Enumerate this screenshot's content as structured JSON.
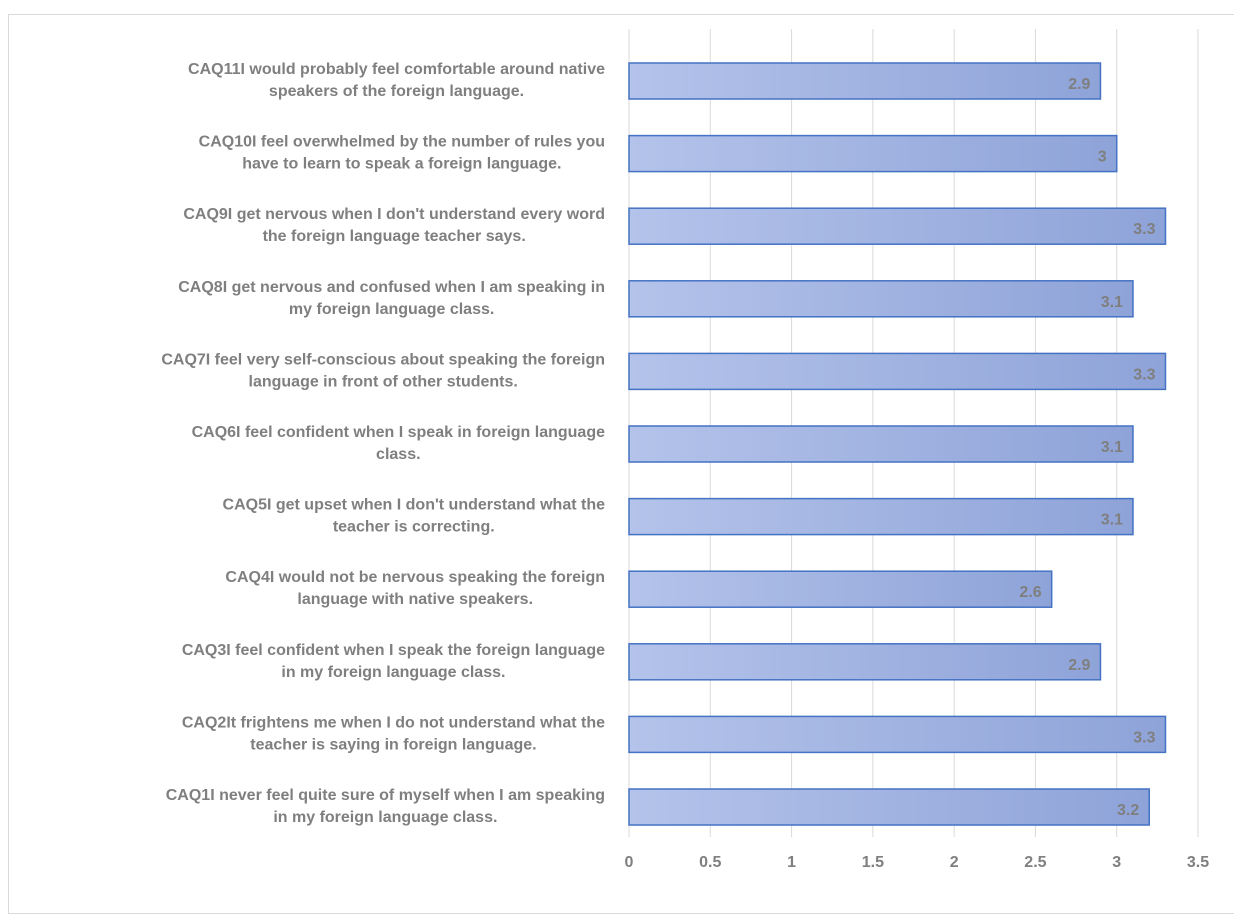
{
  "chart_data": {
    "type": "bar",
    "orientation": "horizontal",
    "categories": [
      "CAQ11I would probably feel comfortable around native speakers of the foreign language.",
      "CAQ10I feel overwhelmed by the number of rules you have to learn to speak a foreign language.",
      "CAQ9I get nervous when I don't understand every word the foreign language teacher says.",
      "CAQ8I get nervous and confused when I am speaking in my foreign language class.",
      "CAQ7I feel very self-conscious about speaking the foreign language in front of other students.",
      "CAQ6I feel confident when I speak in foreign language class.",
      "CAQ5I get upset when I don't understand what the teacher is correcting.",
      "CAQ4I would not be nervous speaking the foreign language with native speakers.",
      "CAQ3I feel confident when I speak the foreign language in my foreign language class.",
      "CAQ2It frightens me when I do not understand what the teacher is saying in foreign language.",
      "CAQ1I never feel quite sure of myself when I am speaking in my foreign language class."
    ],
    "category_lines": [
      [
        "CAQ11I would probably feel comfortable around native",
        "speakers of the foreign language."
      ],
      [
        "CAQ10I feel overwhelmed by the number of rules you",
        "have to learn to speak a foreign language."
      ],
      [
        "CAQ9I get nervous when I don't understand every word",
        "the foreign language teacher says."
      ],
      [
        "CAQ8I get nervous and confused when I am speaking in",
        "my foreign language class."
      ],
      [
        "CAQ7I feel very self-conscious about speaking the foreign",
        "language in front of other students."
      ],
      [
        "CAQ6I feel confident when I speak in foreign language",
        "class."
      ],
      [
        "CAQ5I get upset when I don't understand what the",
        "teacher is correcting."
      ],
      [
        "CAQ4I would not be nervous speaking the foreign",
        "language with native speakers."
      ],
      [
        "CAQ3I feel confident when I speak the foreign language",
        "in my foreign language class."
      ],
      [
        "CAQ2It frightens me when I do not understand what the",
        "teacher is saying in foreign language."
      ],
      [
        "CAQ1I never feel quite sure of myself when I am speaking",
        "in my foreign language class."
      ]
    ],
    "values": [
      2.9,
      3,
      3.3,
      3.1,
      3.3,
      3.1,
      3.1,
      2.6,
      2.9,
      3.3,
      3.2
    ],
    "data_labels": [
      "2.9",
      "3",
      "3.3",
      "3.1",
      "3.3",
      "3.1",
      "3.1",
      "2.6",
      "2.9",
      "3.3",
      "3.2"
    ],
    "x_ticks": [
      "0",
      "0.5",
      "1",
      "1.5",
      "2",
      "2.5",
      "3",
      "3.5"
    ],
    "xlim": [
      0,
      3.5
    ],
    "title": "",
    "xlabel": "",
    "ylabel": "",
    "grid": "vertical",
    "legend": "none",
    "colors": {
      "bar_fill_light": "#b4c3ea",
      "bar_fill_dark": "#8ea3d8",
      "bar_border": "#4472c4",
      "gridline": "#d9d9d9",
      "text": "#7f7f7f"
    }
  }
}
